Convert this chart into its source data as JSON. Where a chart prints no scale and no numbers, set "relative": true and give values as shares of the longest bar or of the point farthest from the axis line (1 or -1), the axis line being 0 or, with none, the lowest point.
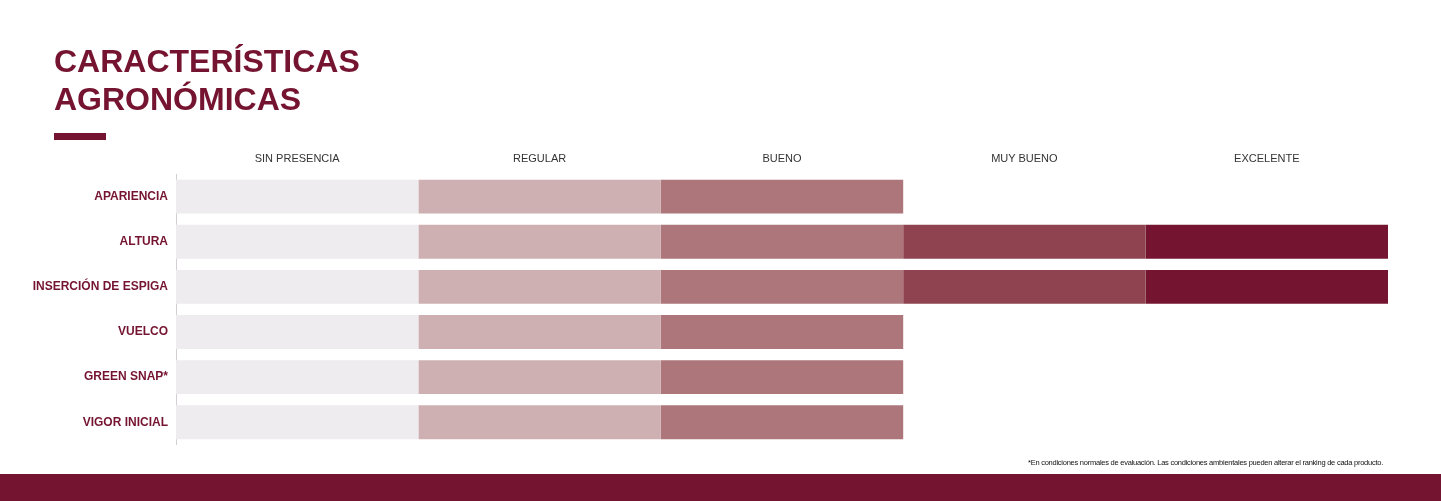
{
  "chart_data": {
    "type": "bar",
    "title": "CARACTERÍSTICAS AGRONÓMICAS",
    "orientation": "horizontal",
    "stacked": true,
    "relative": true,
    "grid": false,
    "categories": [
      "APARIENCIA",
      "ALTURA",
      "INSERCIÓN DE ESPIGA",
      "VUELCO",
      "GREEN SNAP*",
      "VIGOR INICIAL"
    ],
    "series": [
      {
        "color": "#eeecee",
        "values": [
          0.2,
          0.2,
          0.2,
          0.2,
          0.2,
          0.2
        ]
      },
      {
        "color": "#ceb0b2",
        "values": [
          0.2,
          0.2,
          0.2,
          0.2,
          0.2,
          0.2
        ]
      },
      {
        "color": "#ad767a",
        "values": [
          0.2,
          0.2,
          0.2,
          0.2,
          0.2,
          0.2
        ]
      },
      {
        "color": "#8f4350",
        "values": [
          null,
          0.2,
          0.2,
          null,
          null,
          null
        ]
      },
      {
        "color": "#751430",
        "values": [
          null,
          0.2,
          0.2,
          null,
          null,
          null
        ]
      }
    ],
    "annotations": [
      "SIN PRESENCIA",
      "REGULAR",
      "BUENO",
      "MUY BUENO",
      "EXCELENTE",
      "*En condiciones normales de evaluación. Las condiciones ambientales pueden alterar el ranking de cada producto."
    ]
  }
}
